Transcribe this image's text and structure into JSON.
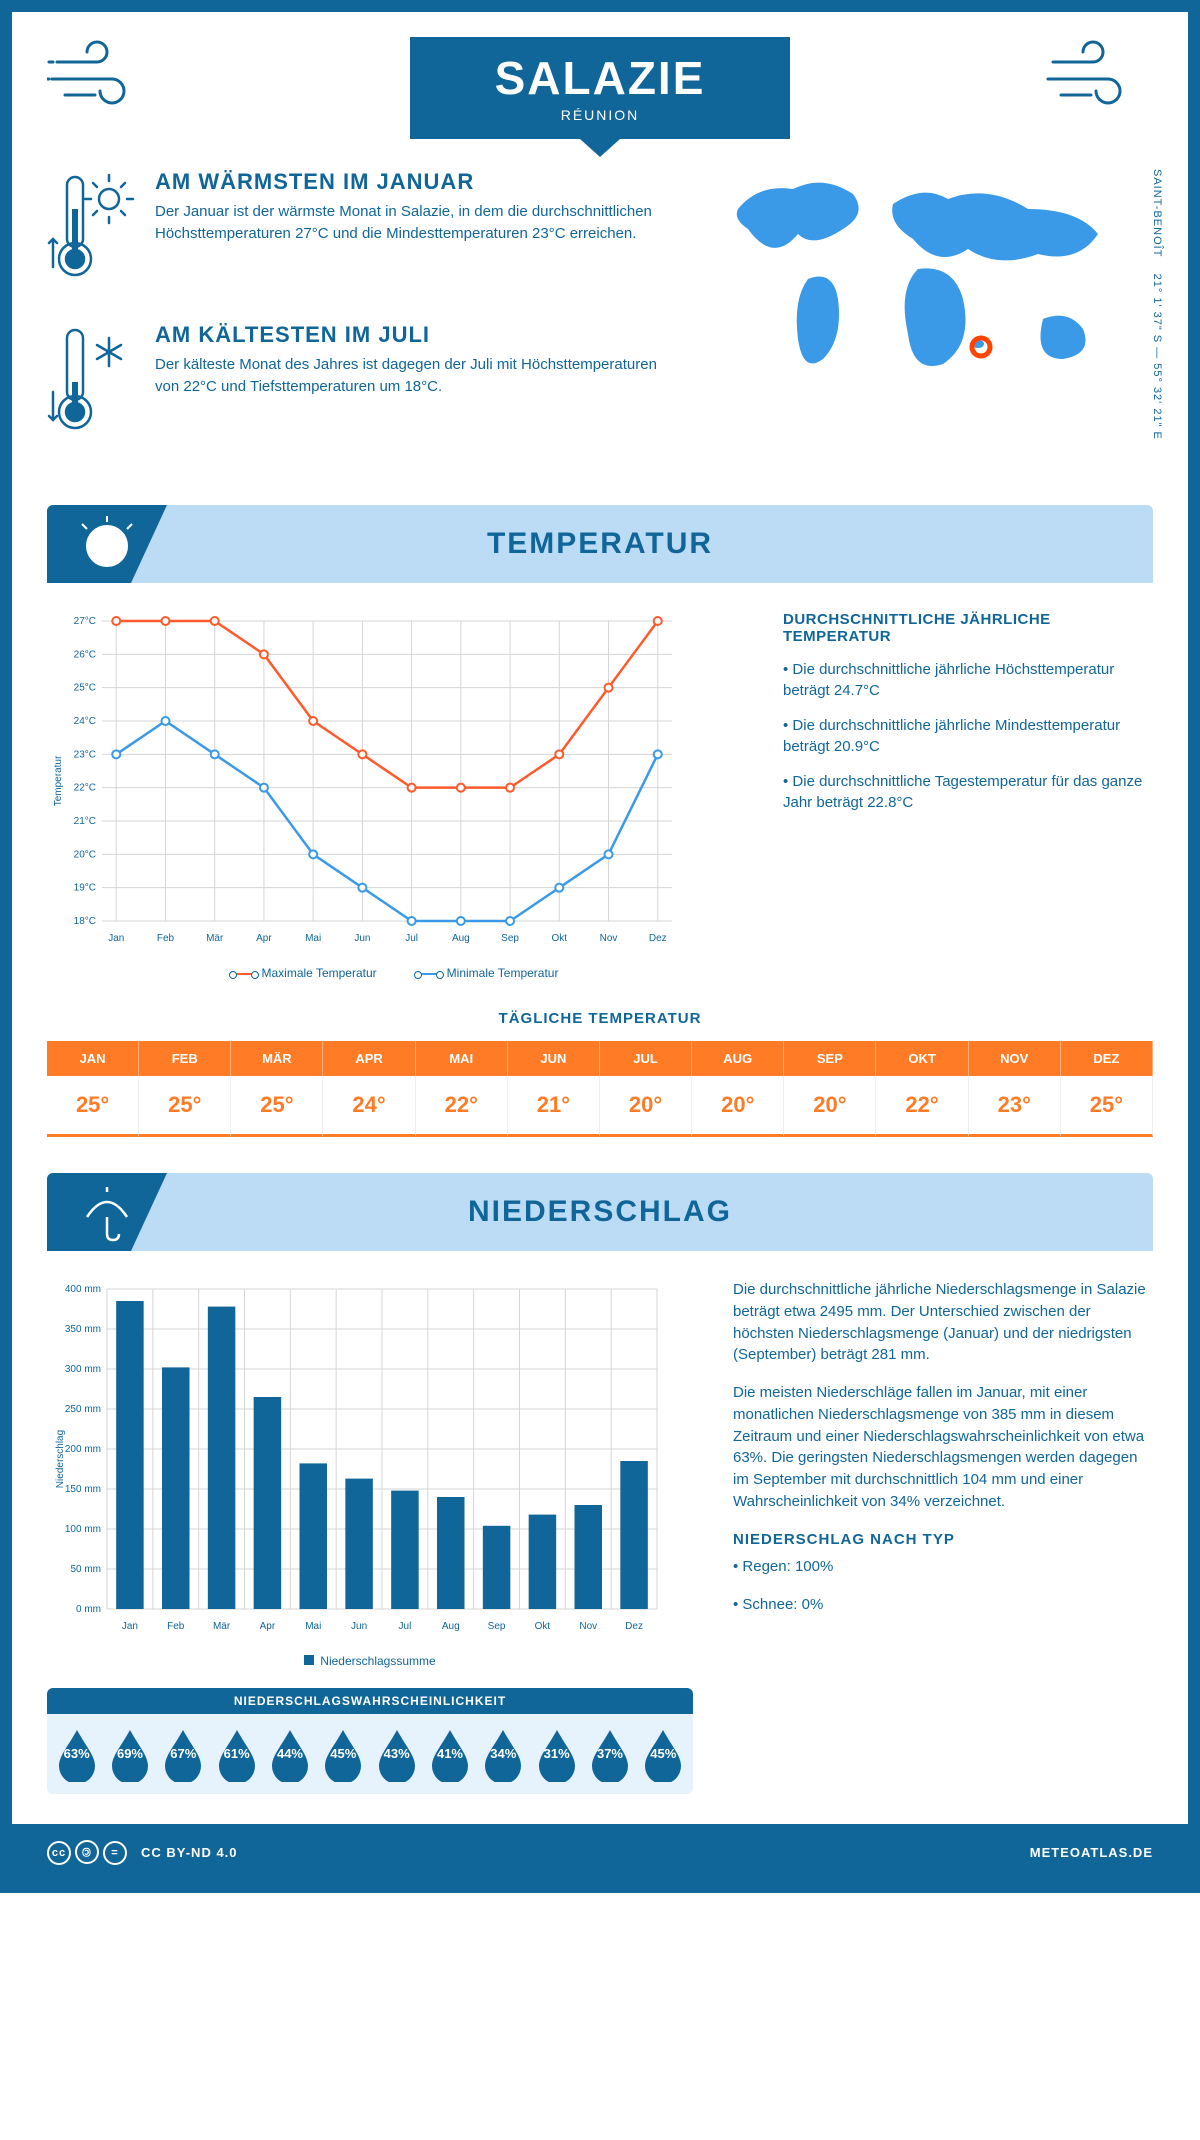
{
  "header": {
    "title": "SALAZIE",
    "subtitle": "RÉUNION",
    "coords": "21° 1' 37\" S — 55° 32' 21\" E",
    "coords_sub": "SAINT-BENOÎT"
  },
  "facts": {
    "warm": {
      "title": "AM WÄRMSTEN IM JANUAR",
      "text": "Der Januar ist der wärmste Monat in Salazie, in dem die durchschnittlichen Höchsttemperaturen 27°C und die Mindesttemperaturen 23°C erreichen."
    },
    "cold": {
      "title": "AM KÄLTESTEN IM JULI",
      "text": "Der kälteste Monat des Jahres ist dagegen der Juli mit Höchsttemperaturen von 22°C und Tiefsttemperaturen um 18°C."
    }
  },
  "months": [
    "Jan",
    "Feb",
    "Mär",
    "Apr",
    "Mai",
    "Jun",
    "Jul",
    "Aug",
    "Sep",
    "Okt",
    "Nov",
    "Dez"
  ],
  "months_uc": [
    "JAN",
    "FEB",
    "MÄR",
    "APR",
    "MAI",
    "JUN",
    "JUL",
    "AUG",
    "SEP",
    "OKT",
    "NOV",
    "DEZ"
  ],
  "temperature": {
    "section_title": "TEMPERATUR",
    "max": [
      27,
      27,
      27,
      26,
      24,
      23,
      22,
      22,
      22,
      23,
      25,
      27
    ],
    "min": [
      23,
      24,
      23,
      22,
      20,
      19,
      18,
      18,
      18,
      19,
      20,
      23
    ],
    "ymin": 18,
    "ymax": 27,
    "ytick": 1,
    "ylabel_suffix": "°C",
    "ylabel": "Temperatur",
    "colors": {
      "max": "#ff5a2b",
      "min": "#3a9ae8"
    },
    "legend": {
      "max": "Maximale Temperatur",
      "min": "Minimale Temperatur"
    },
    "facts_title": "DURCHSCHNITTLICHE JÄHRLICHE TEMPERATUR",
    "bullets": [
      "• Die durchschnittliche jährliche Höchsttemperatur beträgt 24.7°C",
      "• Die durchschnittliche jährliche Mindesttemperatur beträgt 20.9°C",
      "• Die durchschnittliche Tagestemperatur für das ganze Jahr beträgt 22.8°C"
    ],
    "daily_title": "TÄGLICHE TEMPERATUR",
    "daily": [
      "25°",
      "25°",
      "25°",
      "24°",
      "22°",
      "21°",
      "20°",
      "20°",
      "20°",
      "22°",
      "23°",
      "25°"
    ]
  },
  "precip": {
    "section_title": "NIEDERSCHLAG",
    "values": [
      385,
      302,
      378,
      265,
      182,
      163,
      148,
      140,
      104,
      118,
      130,
      185
    ],
    "ymin": 0,
    "ymax": 400,
    "ytick": 50,
    "ylabel_suffix": " mm",
    "ylabel": "Niederschlag",
    "legend": "Niederschlagssumme",
    "text1": "Die durchschnittliche jährliche Niederschlagsmenge in Salazie beträgt etwa 2495 mm. Der Unterschied zwischen der höchsten Niederschlagsmenge (Januar) und der niedrigsten (September) beträgt 281 mm.",
    "text2": "Die meisten Niederschläge fallen im Januar, mit einer monatlichen Niederschlagsmenge von 385 mm in diesem Zeitraum und einer Niederschlagswahrscheinlichkeit von etwa 63%. Die geringsten Niederschlagsmengen werden dagegen im September mit durchschnittlich 104 mm und einer Wahrscheinlichkeit von 34% verzeichnet.",
    "type_title": "NIEDERSCHLAG NACH TYP",
    "type_bullets": [
      "• Regen: 100%",
      "• Schnee: 0%"
    ],
    "prob_title": "NIEDERSCHLAGSWAHRSCHEINLICHKEIT",
    "prob": [
      "63%",
      "69%",
      "67%",
      "61%",
      "44%",
      "45%",
      "43%",
      "41%",
      "34%",
      "31%",
      "37%",
      "45%"
    ]
  },
  "footer": {
    "license": "CC BY-ND 4.0",
    "site": "METEOATLAS.DE"
  },
  "colors": {
    "primary": "#116699",
    "lightblue": "#bcdcf6",
    "orange": "#ff7b26",
    "orange_dk": "#ff5a2b",
    "skyblue": "#3a9ae8",
    "grid": "#d5d5d5"
  }
}
